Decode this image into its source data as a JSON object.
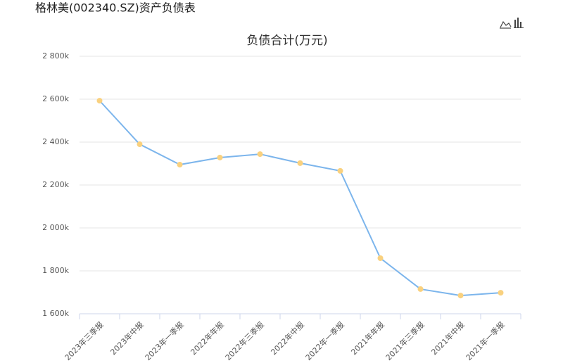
{
  "page_title": "格林美(002340.SZ)资产负债表",
  "chart_data": {
    "type": "line",
    "title": "负债合计(万元)",
    "categories": [
      "2023年三季报",
      "2023年中报",
      "2023年一季报",
      "2022年年报",
      "2022年三季报",
      "2022年中报",
      "2022年一季报",
      "2021年年报",
      "2021年三季报",
      "2021年中报",
      "2021年一季报"
    ],
    "values": [
      2593000,
      2390000,
      2295000,
      2328000,
      2344000,
      2302000,
      2266000,
      1859000,
      1715000,
      1685000,
      1698000
    ],
    "color": "#7cb5ec",
    "marker_color": "#f9d17f",
    "ylim": [
      1600000,
      2800000
    ],
    "yticks": [
      {
        "value": 1600000,
        "label": "1 600k"
      },
      {
        "value": 1800000,
        "label": "1 800k"
      },
      {
        "value": 2000000,
        "label": "2 000k"
      },
      {
        "value": 2200000,
        "label": "2 200k"
      },
      {
        "value": 2400000,
        "label": "2 400k"
      },
      {
        "value": 2600000,
        "label": "2 600k"
      },
      {
        "value": 2800000,
        "label": "2 800k"
      }
    ],
    "grid": true
  }
}
